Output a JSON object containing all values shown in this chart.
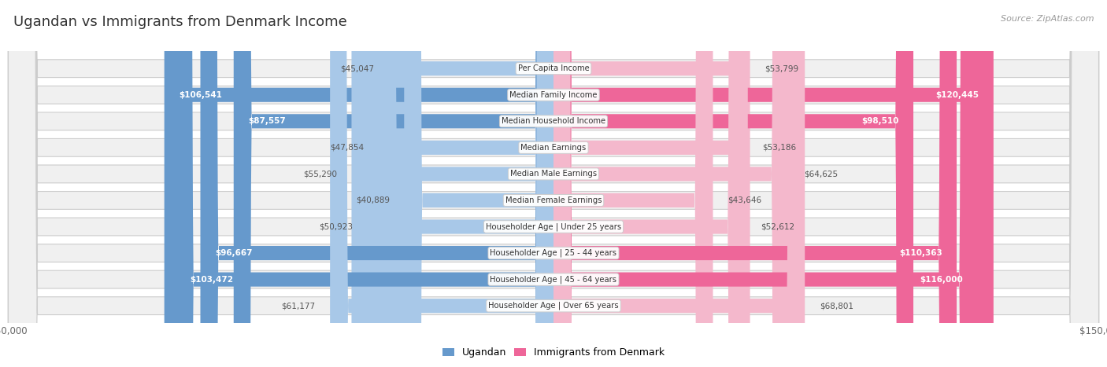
{
  "title": "Ugandan vs Immigrants from Denmark Income",
  "source": "Source: ZipAtlas.com",
  "categories": [
    "Per Capita Income",
    "Median Family Income",
    "Median Household Income",
    "Median Earnings",
    "Median Male Earnings",
    "Median Female Earnings",
    "Householder Age | Under 25 years",
    "Householder Age | 25 - 44 years",
    "Householder Age | 45 - 64 years",
    "Householder Age | Over 65 years"
  ],
  "ugandan_values": [
    45047,
    106541,
    87557,
    47854,
    55290,
    40889,
    50923,
    96667,
    103472,
    61177
  ],
  "denmark_values": [
    53799,
    120445,
    98510,
    53186,
    64625,
    43646,
    52612,
    110363,
    116000,
    68801
  ],
  "ugandan_labels": [
    "$45,047",
    "$106,541",
    "$87,557",
    "$47,854",
    "$55,290",
    "$40,889",
    "$50,923",
    "$96,667",
    "$103,472",
    "$61,177"
  ],
  "denmark_labels": [
    "$53,799",
    "$120,445",
    "$98,510",
    "$53,186",
    "$64,625",
    "$43,646",
    "$52,612",
    "$110,363",
    "$116,000",
    "$68,801"
  ],
  "ugandan_color_light": "#A8C8E8",
  "ugandan_color_strong": "#6699CC",
  "denmark_color_light": "#F4B8CC",
  "denmark_color_strong": "#EE6699",
  "inside_text_threshold": 75000,
  "max_value": 150000,
  "legend_ugandan": "Ugandan",
  "legend_denmark": "Immigrants from Denmark",
  "background_color": "#ffffff",
  "row_bg_color": "#f0f0f0",
  "row_border_color": "#cccccc",
  "title_color": "#333333",
  "source_color": "#999999",
  "outside_label_color": "#555555",
  "inside_label_color": "#ffffff"
}
